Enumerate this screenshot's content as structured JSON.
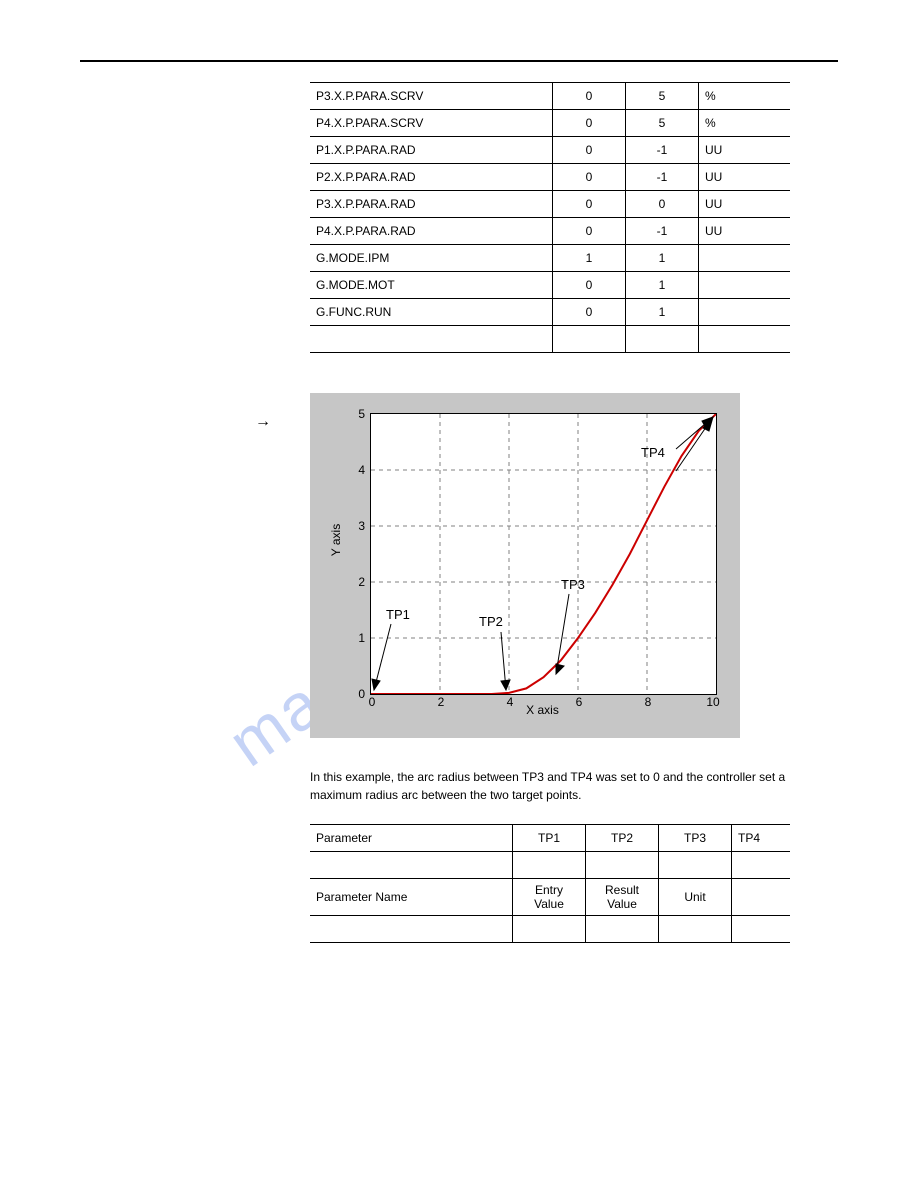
{
  "table1": {
    "rows": [
      {
        "label": "P3.X.P.PARA.SCRV",
        "c2": "0",
        "c3": "5",
        "c4": "%"
      },
      {
        "label": "P4.X.P.PARA.SCRV",
        "c2": "0",
        "c3": "5",
        "c4": "%"
      },
      {
        "label": "P1.X.P.PARA.RAD",
        "c2": "0",
        "c3": "-1",
        "c4": "UU"
      },
      {
        "label": "P2.X.P.PARA.RAD",
        "c2": "0",
        "c3": "-1",
        "c4": "UU"
      },
      {
        "label": "P3.X.P.PARA.RAD",
        "c2": "0",
        "c3": "0",
        "c4": "UU"
      },
      {
        "label": "P4.X.P.PARA.RAD",
        "c2": "0",
        "c3": "-1",
        "c4": "UU"
      },
      {
        "label": "G.MODE.IPM",
        "c2": "1",
        "c3": "1",
        "c4": ""
      },
      {
        "label": "G.MODE.MOT",
        "c2": "0",
        "c3": "1",
        "c4": ""
      },
      {
        "label": "G.FUNC.RUN",
        "c2": "0",
        "c3": "1",
        "c4": ""
      },
      {
        "label": "",
        "c2": "",
        "c3": "",
        "c4": ""
      }
    ]
  },
  "paragraph": "In this example, the arc radius between TP3 and TP4 was set to 0 and the controller set a maximum radius arc between the two target points.",
  "table2": {
    "rows": [
      {
        "label": "Parameter",
        "c2": "TP1",
        "c3": "TP2",
        "c4": "TP3",
        "c5": "TP4"
      },
      {
        "label": "",
        "c2": "",
        "c3": "",
        "c4": "",
        "c5": ""
      },
      {
        "label": "Parameter Name",
        "c2": "Entry Value",
        "c3": "Result Value",
        "c4": "Unit",
        "c5": ""
      },
      {
        "label": "",
        "c2": "",
        "c3": "",
        "c4": "",
        "c5": ""
      }
    ]
  },
  "chart": {
    "xlabel": "X axis",
    "ylabel": "Y axis",
    "xlim": [
      0,
      10
    ],
    "ylim": [
      0,
      5
    ],
    "xticks": [
      0,
      2,
      4,
      6,
      8,
      10
    ],
    "yticks": [
      0,
      1,
      2,
      3,
      4,
      5
    ],
    "background": "#c6c6c6",
    "plot_bg": "#ffffff",
    "grid_color": "#808080",
    "curve_color": "#cc0000",
    "curve_width": 2,
    "labels": {
      "tp1": "TP1",
      "tp2": "TP2",
      "tp3": "TP3",
      "tp4": "TP4"
    },
    "curve_points": [
      [
        0,
        0
      ],
      [
        1,
        0
      ],
      [
        2,
        0
      ],
      [
        3,
        0
      ],
      [
        3.5,
        0
      ],
      [
        4,
        0.02
      ],
      [
        4.5,
        0.1
      ],
      [
        5,
        0.3
      ],
      [
        5.5,
        0.6
      ],
      [
        6,
        1.0
      ],
      [
        6.5,
        1.45
      ],
      [
        7,
        1.95
      ],
      [
        7.5,
        2.5
      ],
      [
        8,
        3.1
      ],
      [
        8.5,
        3.7
      ],
      [
        9,
        4.25
      ],
      [
        9.5,
        4.7
      ],
      [
        10,
        5
      ]
    ]
  }
}
